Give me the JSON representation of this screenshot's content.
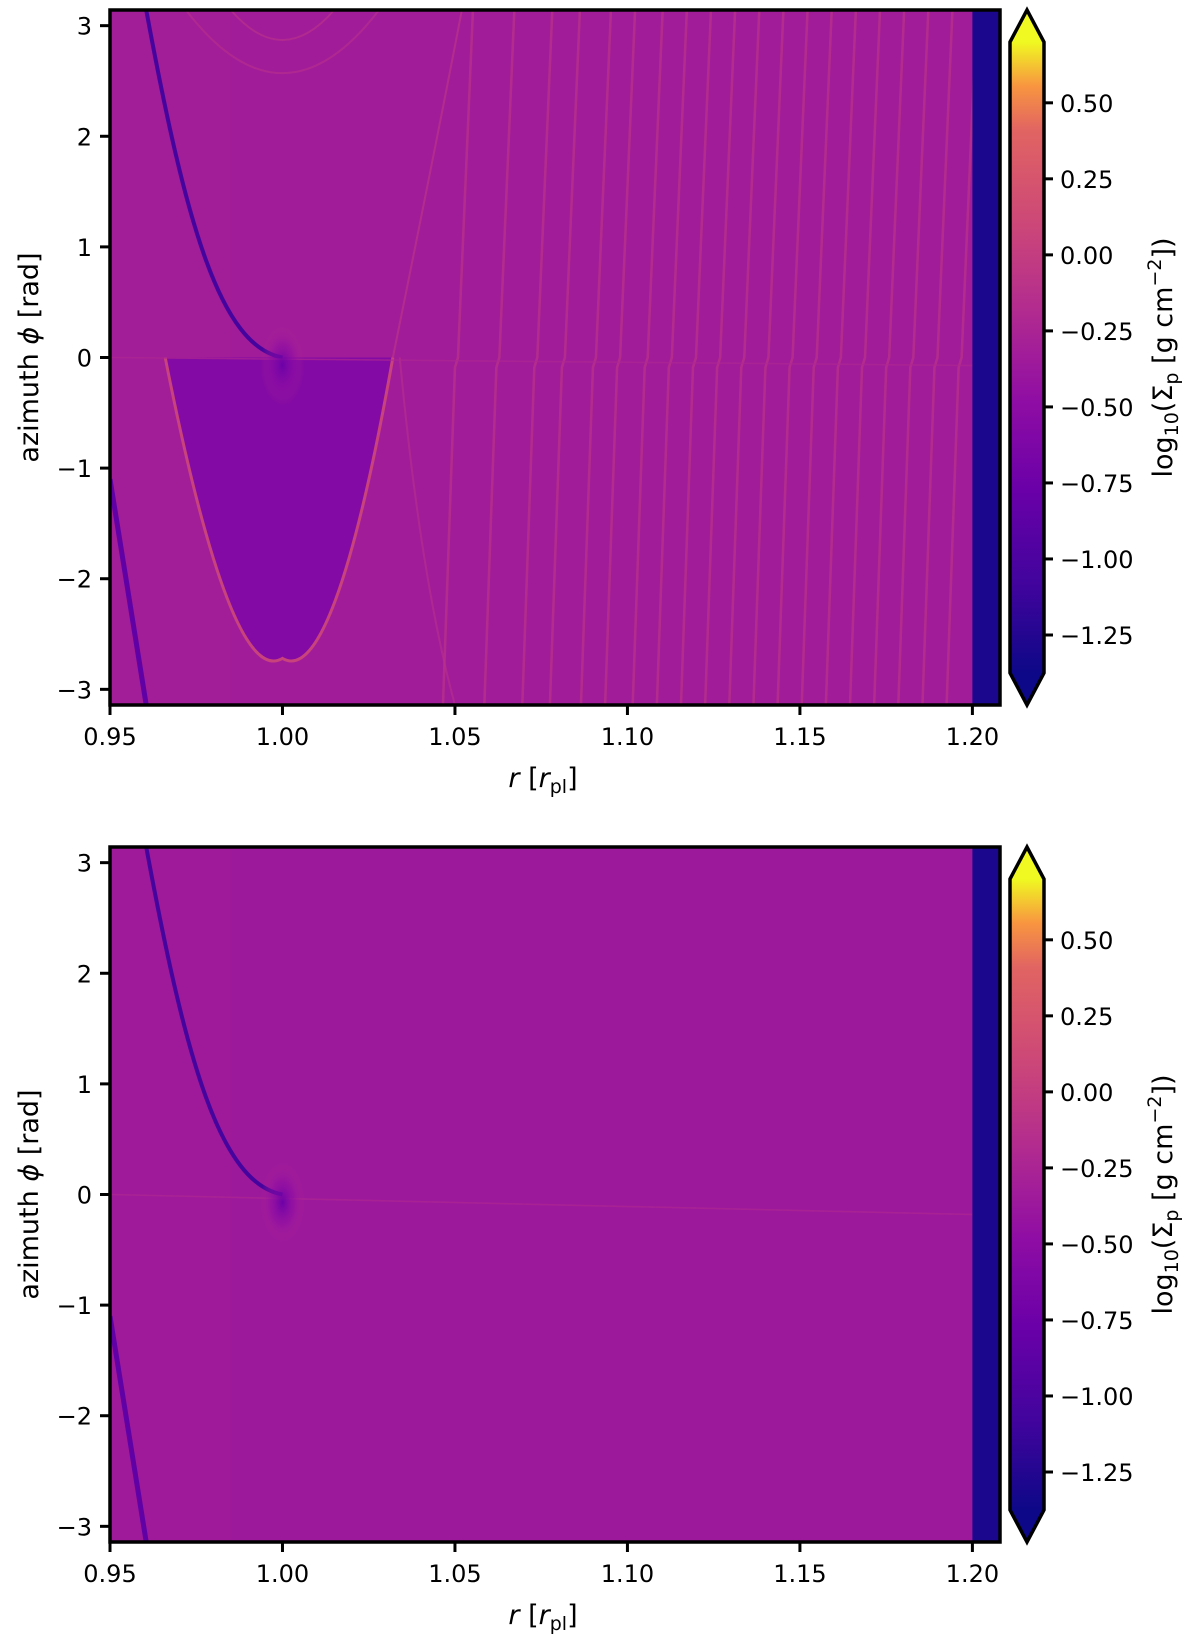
{
  "chart_data": [
    {
      "type": "heatmap",
      "xlabel_var": "r",
      "xlabel_unit": "r",
      "xlabel_unit_sub": "pl",
      "ylabel_text": "azimuth ",
      "ylabel_var": "ϕ",
      "ylabel_unit": "[rad]",
      "xlim": [
        0.95,
        1.208
      ],
      "ylim": [
        -3.14159,
        3.14159
      ],
      "x_ticks": [
        0.95,
        1.0,
        1.05,
        1.1,
        1.15,
        1.2
      ],
      "x_tick_labels": [
        "0.95",
        "1.00",
        "1.05",
        "1.10",
        "1.15",
        "1.20"
      ],
      "y_ticks": [
        3,
        2,
        1,
        0,
        -1,
        -2,
        -3
      ],
      "y_tick_labels": [
        "3",
        "2",
        "1",
        "0",
        "−1",
        "−2",
        "−3"
      ],
      "colorbar": {
        "label_prefix": "log",
        "label_sub": "10",
        "label_sigma": "(Σ",
        "label_sigma_sub": "p",
        "label_units": " [g cm",
        "label_exp": "−2",
        "label_suffix": "])",
        "range": [
          -1.375,
          0.7
        ],
        "extend": "both",
        "ticks": [
          0.5,
          0.25,
          0.0,
          -0.25,
          -0.5,
          -0.75,
          -1.0,
          -1.25
        ],
        "tick_labels": [
          "0.50",
          "0.25",
          "0.00",
          "−0.25",
          "−0.50",
          "−0.75",
          "−1.00",
          "−1.25"
        ]
      },
      "colormap": "plasma",
      "background_value": -0.33,
      "features": {
        "planet": {
          "r": 1.0,
          "phi": 0.0
        },
        "depleted_region_r_min": 1.2,
        "dark_spiral_arm_visible": true,
        "horseshoe_ring_visible": true,
        "outer_ring_r": [
          1.05,
          1.062,
          1.073,
          1.081,
          1.09,
          1.097,
          1.105,
          1.112,
          1.119,
          1.126,
          1.133,
          1.14,
          1.147,
          1.154,
          1.161,
          1.168,
          1.175,
          1.182,
          1.189,
          1.196
        ]
      }
    },
    {
      "type": "heatmap",
      "xlabel_var": "r",
      "xlabel_unit": "r",
      "xlabel_unit_sub": "pl",
      "ylabel_text": "azimuth ",
      "ylabel_var": "ϕ",
      "ylabel_unit": "[rad]",
      "xlim": [
        0.95,
        1.208
      ],
      "ylim": [
        -3.14159,
        3.14159
      ],
      "x_ticks": [
        0.95,
        1.0,
        1.05,
        1.1,
        1.15,
        1.2
      ],
      "x_tick_labels": [
        "0.95",
        "1.00",
        "1.05",
        "1.10",
        "1.15",
        "1.20"
      ],
      "y_ticks": [
        3,
        2,
        1,
        0,
        -1,
        -2,
        -3
      ],
      "y_tick_labels": [
        "3",
        "2",
        "1",
        "0",
        "−1",
        "−2",
        "−3"
      ],
      "colorbar": {
        "label_prefix": "log",
        "label_sub": "10",
        "label_sigma": "(Σ",
        "label_sigma_sub": "p",
        "label_units": " [g cm",
        "label_exp": "−2",
        "label_suffix": "])",
        "range": [
          -1.375,
          0.7
        ],
        "extend": "both",
        "ticks": [
          0.5,
          0.25,
          0.0,
          -0.25,
          -0.5,
          -0.75,
          -1.0,
          -1.25
        ],
        "tick_labels": [
          "0.50",
          "0.25",
          "0.00",
          "−0.25",
          "−0.50",
          "−0.75",
          "−1.00",
          "−1.25"
        ]
      },
      "colormap": "plasma",
      "background_value": -0.36,
      "features": {
        "planet": {
          "r": 1.0,
          "phi": 0.0
        },
        "depleted_region_r_min": 1.2,
        "dark_spiral_arm_visible": true,
        "horseshoe_ring_visible": false,
        "outer_ring_r": []
      }
    }
  ]
}
